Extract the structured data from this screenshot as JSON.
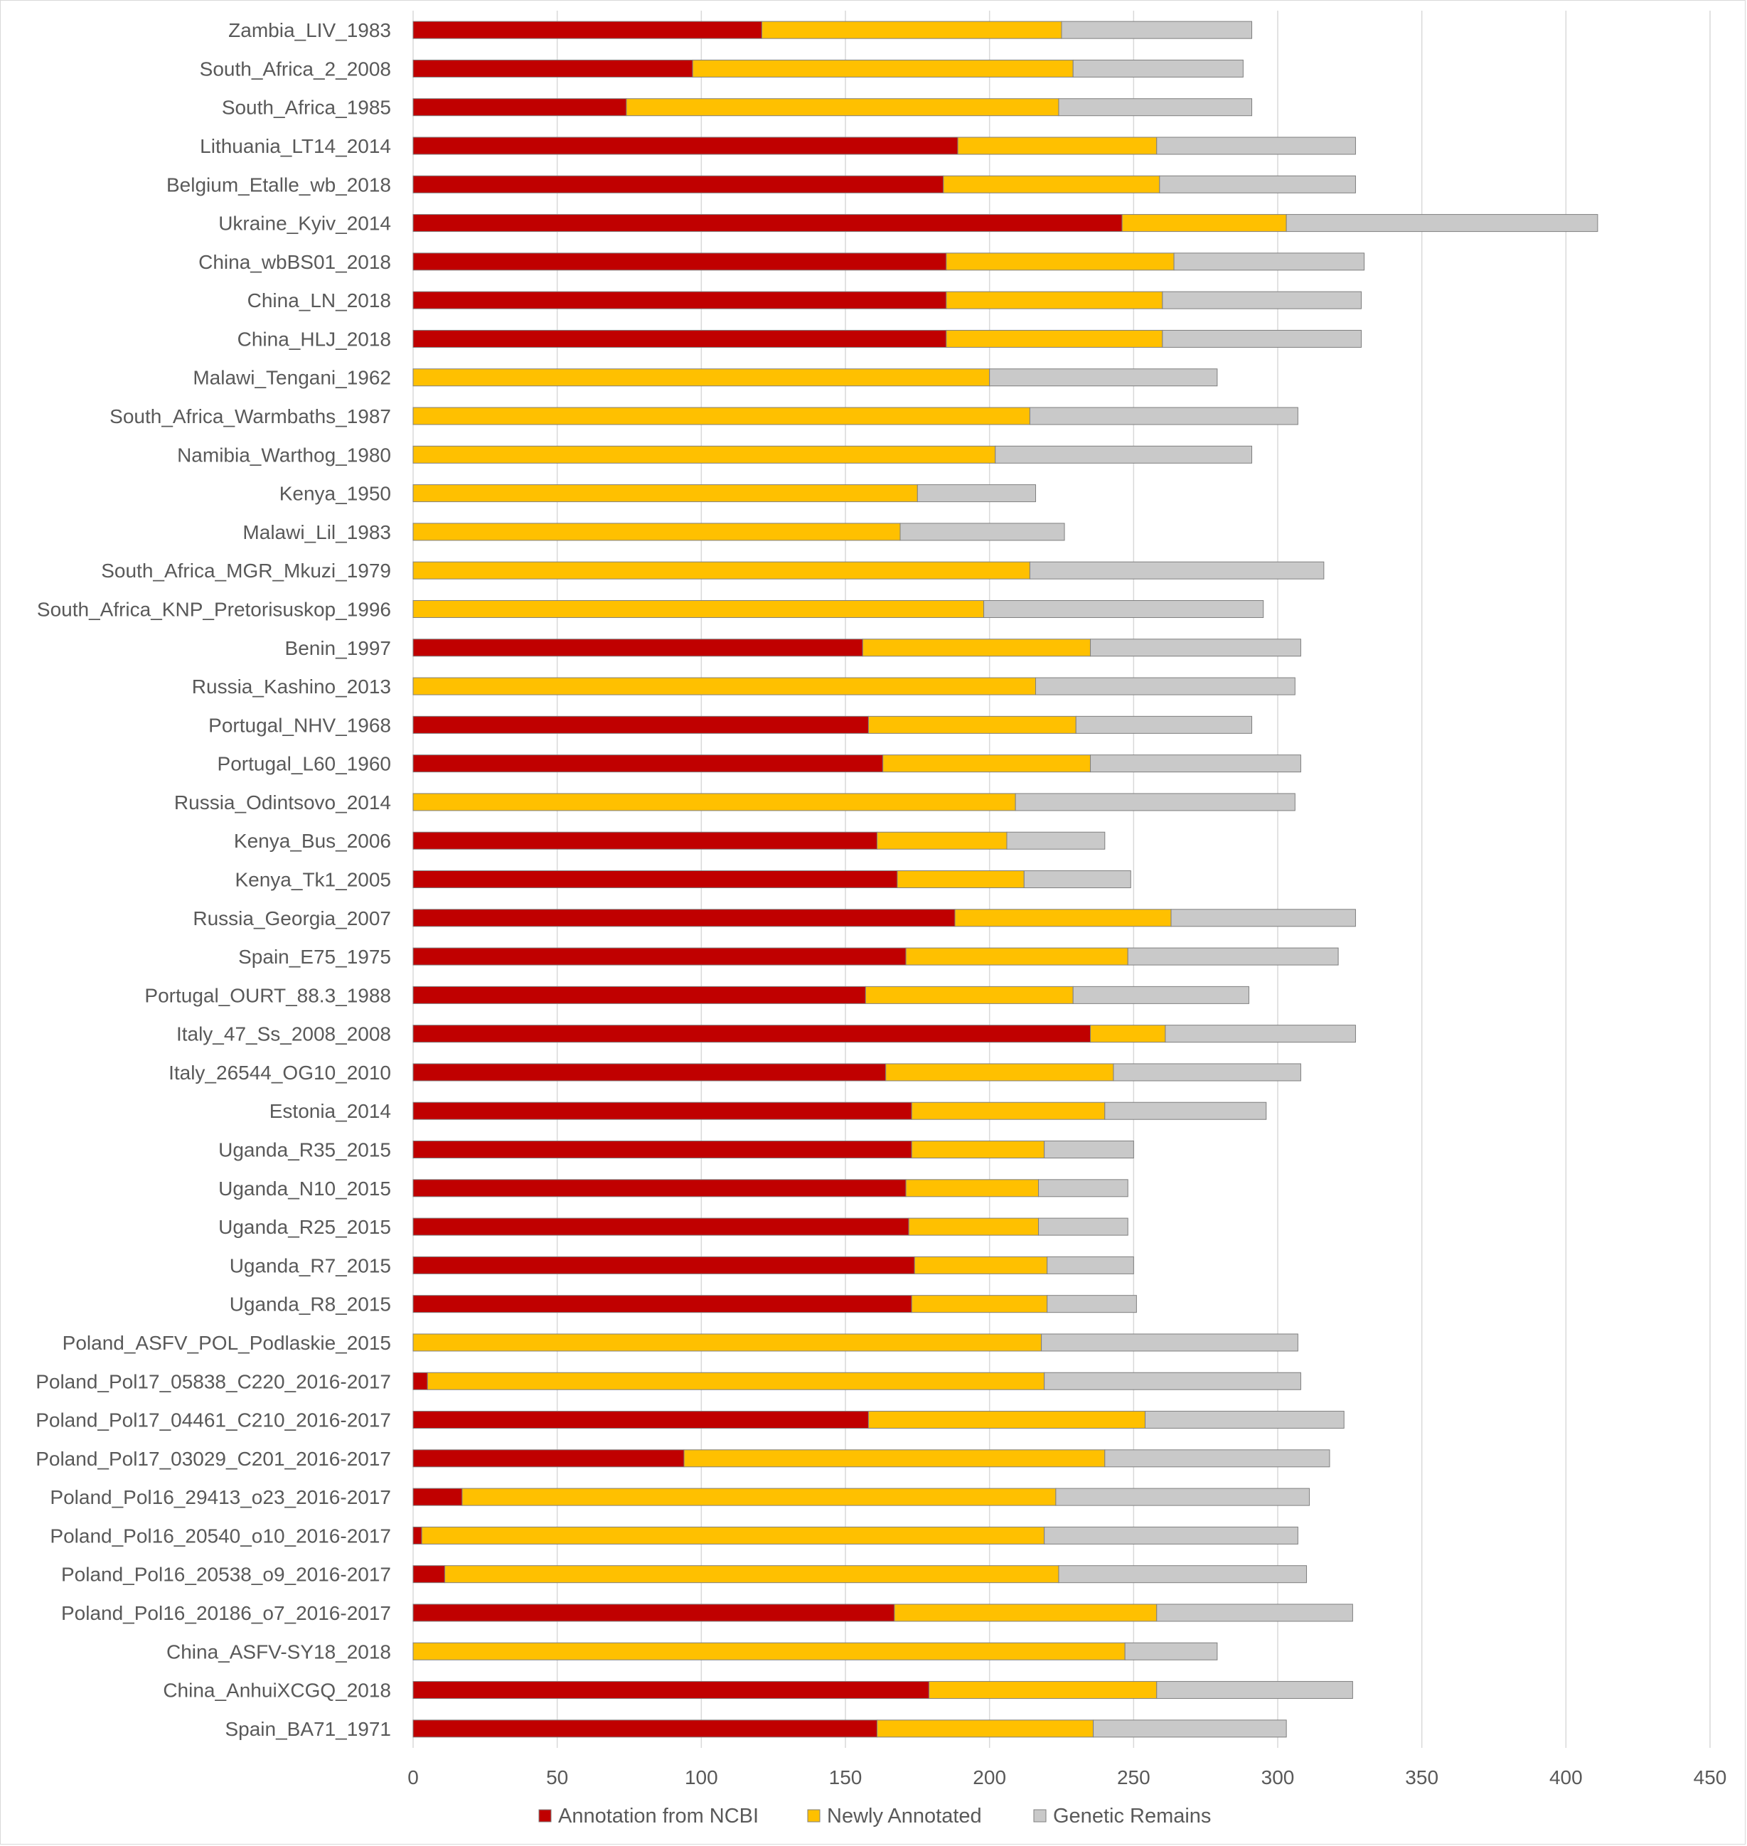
{
  "chart_data": {
    "type": "bar",
    "orientation": "horizontal",
    "stacked": true,
    "xlim": [
      0,
      450
    ],
    "xticks": [
      0,
      50,
      100,
      150,
      200,
      250,
      300,
      350,
      400,
      450
    ],
    "grid": "vertical",
    "legend_position": "bottom",
    "categories": [
      "Zambia_LIV_1983",
      "South_Africa_2_2008",
      "South_Africa_1985",
      "Lithuania_LT14_2014",
      "Belgium_Etalle_wb_2018",
      "Ukraine_Kyiv_2014",
      "China_wbBS01_2018",
      "China_LN_2018",
      "China_HLJ_2018",
      "Malawi_Tengani_1962",
      "South_Africa_Warmbaths_1987",
      "Namibia_Warthog_1980",
      "Kenya_1950",
      "Malawi_Lil_1983",
      "South_Africa_MGR_Mkuzi_1979",
      "South_Africa_KNP_Pretorisuskop_1996",
      "Benin_1997",
      "Russia_Kashino_2013",
      "Portugal_NHV_1968",
      "Portugal_L60_1960",
      "Russia_Odintsovo_2014",
      "Kenya_Bus_2006",
      "Kenya_Tk1_2005",
      "Russia_Georgia_2007",
      "Spain_E75_1975",
      "Portugal_OURT_88.3_1988",
      "Italy_47_Ss_2008_2008",
      "Italy_26544_OG10_2010",
      "Estonia_2014",
      "Uganda_R35_2015",
      "Uganda_N10_2015",
      "Uganda_R25_2015",
      "Uganda_R7_2015",
      "Uganda_R8_2015",
      "Poland_ASFV_POL_Podlaskie_2015",
      "Poland_Pol17_05838_C220_2016-2017",
      "Poland_Pol17_04461_C210_2016-2017",
      "Poland_Pol17_03029_C201_2016-2017",
      "Poland_Pol16_29413_o23_2016-2017",
      "Poland_Pol16_20540_o10_2016-2017",
      "Poland_Pol16_20538_o9_2016-2017",
      "Poland_Pol16_20186_o7_2016-2017",
      "China_ASFV-SY18_2018",
      "China_AnhuiXCGQ_2018",
      "Spain_BA71_1971"
    ],
    "series": [
      {
        "name": "Annotation from NCBI",
        "color": "#c00000",
        "values": [
          121,
          97,
          74,
          189,
          184,
          246,
          185,
          185,
          185,
          0,
          0,
          0,
          0,
          0,
          0,
          0,
          156,
          0,
          158,
          163,
          0,
          161,
          168,
          188,
          171,
          157,
          235,
          164,
          173,
          173,
          171,
          172,
          174,
          173,
          0,
          5,
          158,
          94,
          17,
          3,
          11,
          167,
          0,
          179,
          161
        ]
      },
      {
        "name": "Newly Annotated",
        "color": "#ffc000",
        "values": [
          104,
          132,
          150,
          69,
          75,
          57,
          79,
          75,
          75,
          200,
          214,
          202,
          175,
          169,
          214,
          198,
          79,
          216,
          72,
          72,
          209,
          45,
          44,
          75,
          77,
          72,
          26,
          79,
          67,
          46,
          46,
          45,
          46,
          47,
          218,
          214,
          96,
          146,
          206,
          216,
          213,
          91,
          247,
          79,
          75
        ]
      },
      {
        "name": "Genetic Remains",
        "color": "#c9c9c9",
        "values": [
          66,
          59,
          67,
          69,
          68,
          108,
          66,
          69,
          69,
          79,
          93,
          89,
          41,
          57,
          102,
          97,
          73,
          90,
          61,
          73,
          97,
          34,
          37,
          64,
          73,
          61,
          66,
          65,
          56,
          31,
          31,
          31,
          30,
          31,
          89,
          89,
          69,
          78,
          88,
          88,
          86,
          68,
          32,
          68,
          67
        ]
      }
    ]
  }
}
